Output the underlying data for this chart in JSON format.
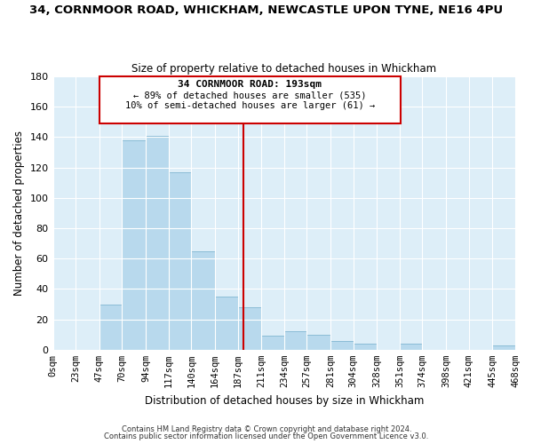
{
  "title": "34, CORNMOOR ROAD, WHICKHAM, NEWCASTLE UPON TYNE, NE16 4PU",
  "subtitle": "Size of property relative to detached houses in Whickham",
  "xlabel": "Distribution of detached houses by size in Whickham",
  "ylabel": "Number of detached properties",
  "bar_color": "#b8d9ed",
  "bar_edge_color": "#8bbcd6",
  "background_color": "#ddeef8",
  "bins": [
    0,
    23,
    47,
    70,
    94,
    117,
    140,
    164,
    187,
    211,
    234,
    257,
    281,
    304,
    328,
    351,
    374,
    398,
    421,
    445,
    468
  ],
  "counts": [
    0,
    0,
    30,
    138,
    141,
    117,
    65,
    35,
    28,
    9,
    12,
    10,
    6,
    4,
    0,
    4,
    0,
    0,
    0,
    3
  ],
  "tick_labels": [
    "0sqm",
    "23sqm",
    "47sqm",
    "70sqm",
    "94sqm",
    "117sqm",
    "140sqm",
    "164sqm",
    "187sqm",
    "211sqm",
    "234sqm",
    "257sqm",
    "281sqm",
    "304sqm",
    "328sqm",
    "351sqm",
    "374sqm",
    "398sqm",
    "421sqm",
    "445sqm",
    "468sqm"
  ],
  "vline_x": 193,
  "vline_color": "#cc0000",
  "annotation_title": "34 CORNMOOR ROAD: 193sqm",
  "annotation_line1": "← 89% of detached houses are smaller (535)",
  "annotation_line2": "10% of semi-detached houses are larger (61) →",
  "ylim": [
    0,
    180
  ],
  "yticks": [
    0,
    20,
    40,
    60,
    80,
    100,
    120,
    140,
    160,
    180
  ],
  "footer1": "Contains HM Land Registry data © Crown copyright and database right 2024.",
  "footer2": "Contains public sector information licensed under the Open Government Licence v3.0."
}
